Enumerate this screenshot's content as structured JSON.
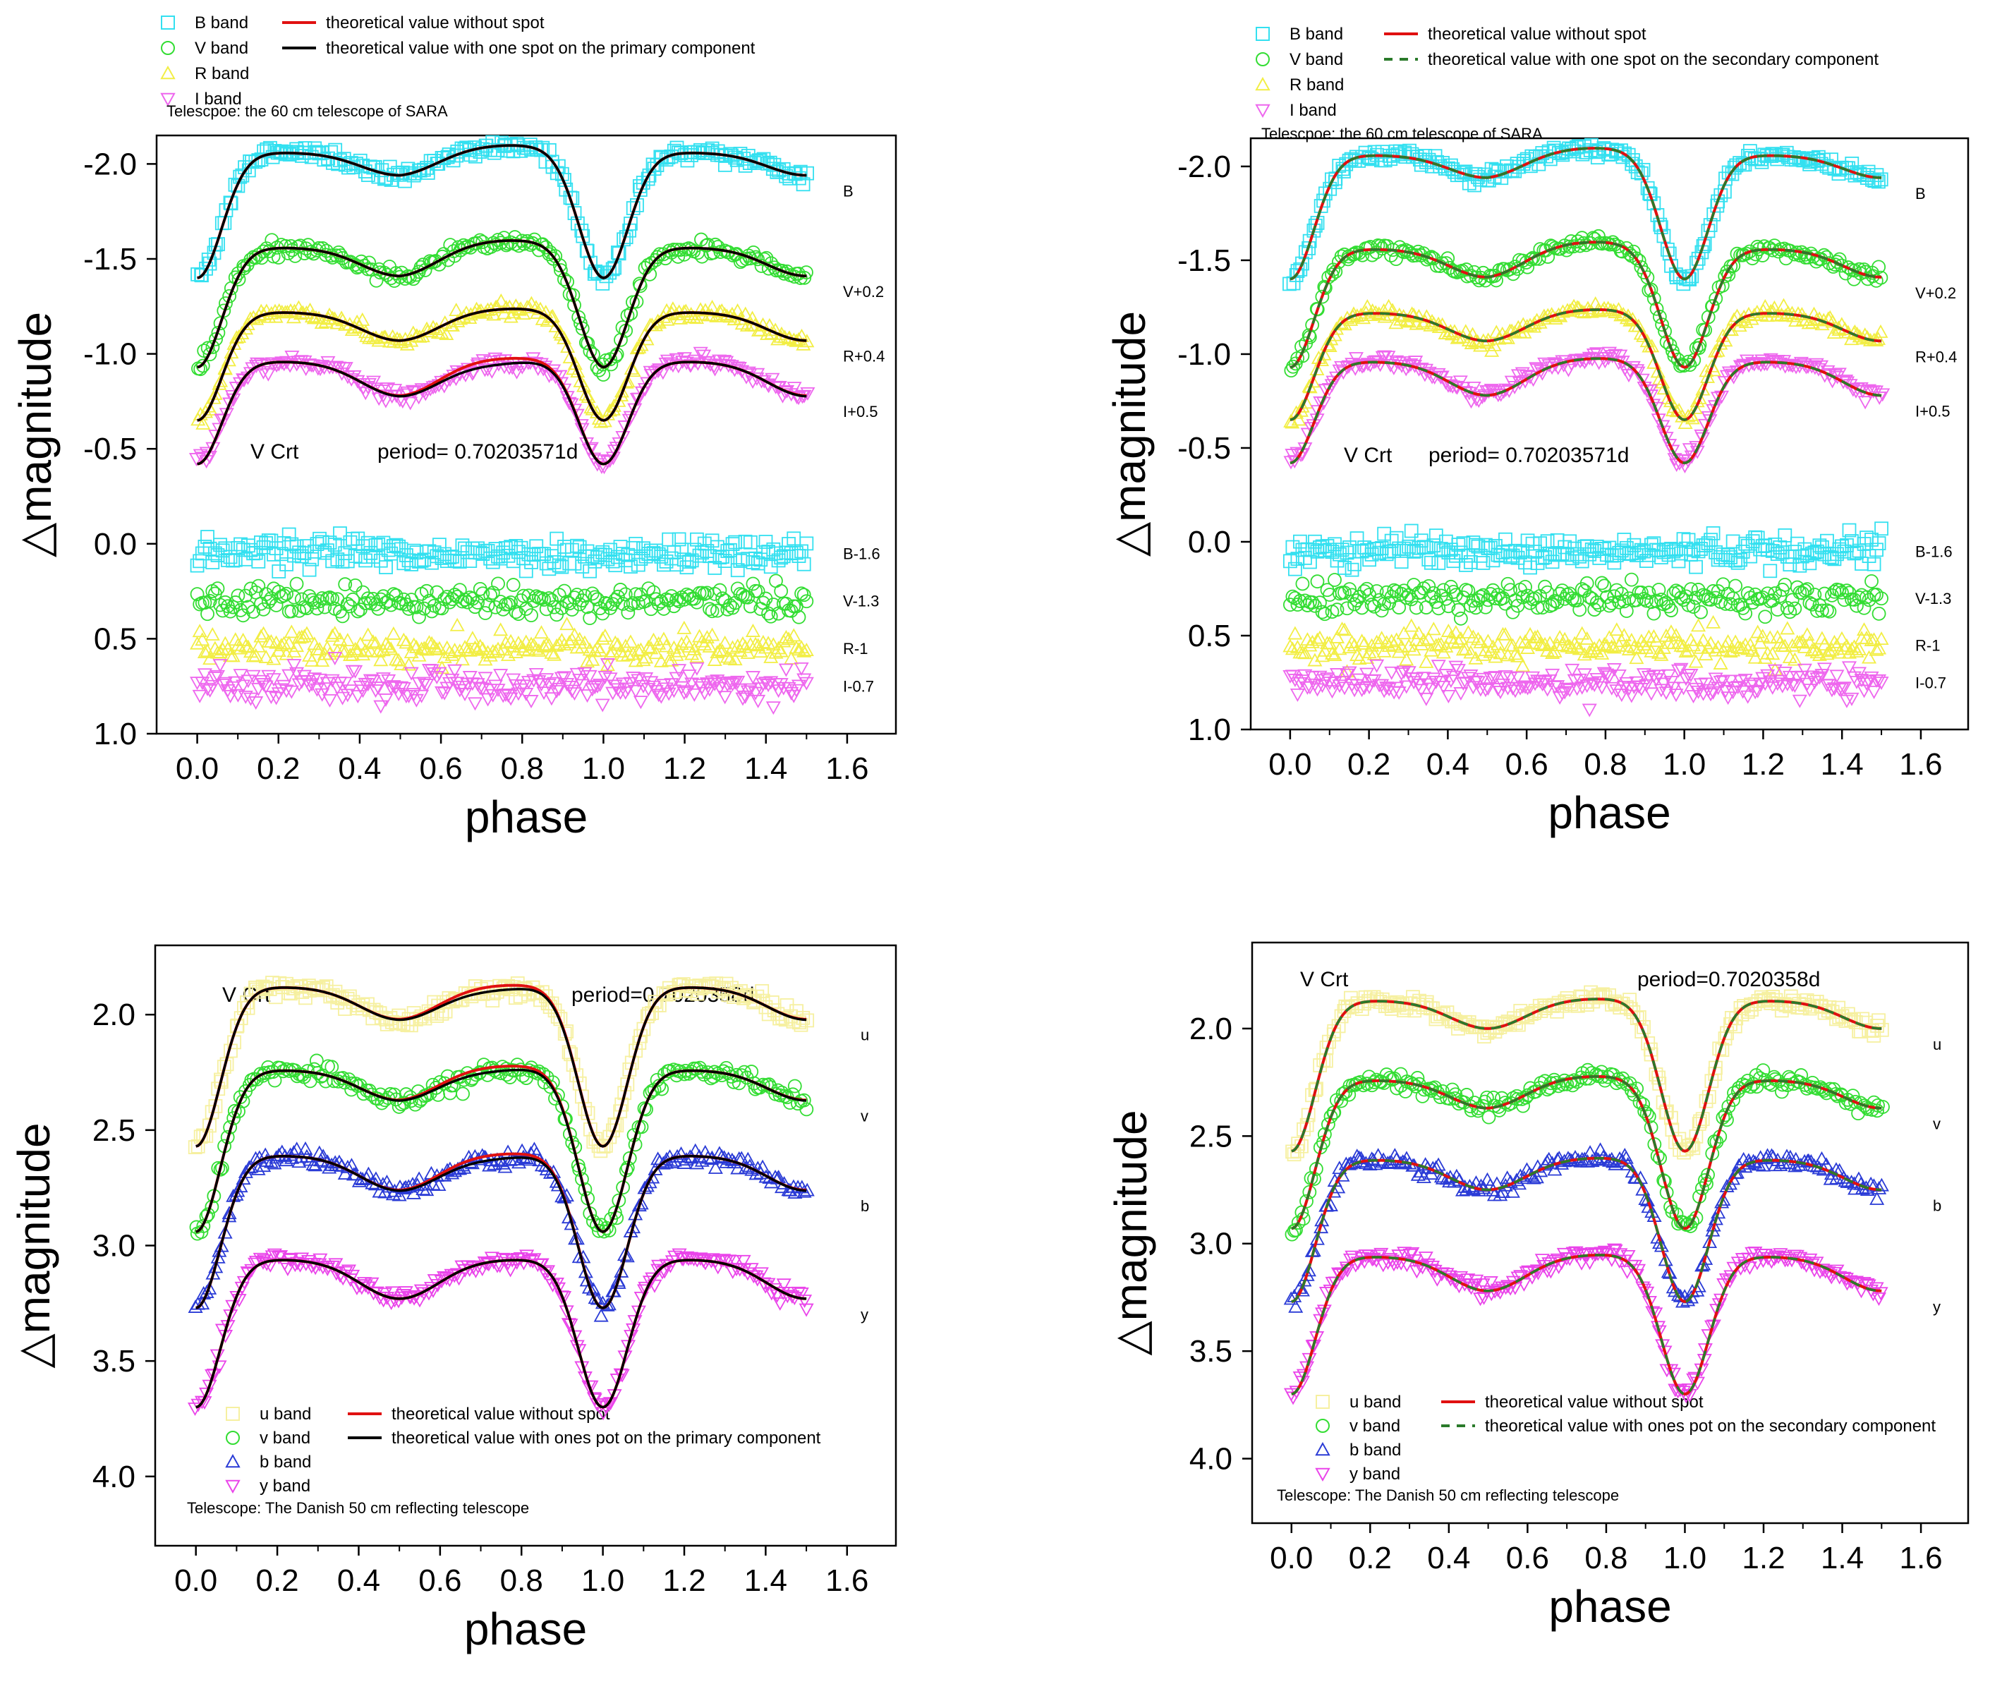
{
  "figure": {
    "background": "#ffffff"
  },
  "colors": {
    "cyan": "#33e0f0",
    "green": "#33dd33",
    "yellow": "#f2ee44",
    "magenta": "#ee66ee",
    "pale_yellow": "#f6f0a0",
    "blue": "#2a3bd6",
    "pink": "#ea44ea",
    "red": "#e01010",
    "black": "#000000",
    "dash_green": "#2a7a2a"
  },
  "chart_data": [
    {
      "id": "top-left",
      "type": "scatter",
      "xlabel": "phase",
      "ylabel": "△magnitude",
      "xlim": [
        -0.1,
        1.72
      ],
      "ylim": [
        1.0,
        -2.15
      ],
      "inverted_y": true,
      "xticks": [
        "0.0",
        "0.2",
        "0.4",
        "0.6",
        "0.8",
        "1.0",
        "1.2",
        "1.4",
        "1.6"
      ],
      "yticks": [
        "-2.0",
        "-1.5",
        "-1.0",
        "-0.5",
        "0.0",
        "0.5",
        "1.0"
      ],
      "ytick_values": [
        -2.0,
        -1.5,
        -1.0,
        -0.5,
        0.0,
        0.5,
        1.0
      ],
      "phase_range": [
        0.0,
        1.5
      ],
      "title_parts": [
        "V Crt",
        "period= 0.70203571d"
      ],
      "legend_markers": [
        {
          "label": "B band",
          "marker": "square",
          "color": "cyan"
        },
        {
          "label": "V band",
          "marker": "circle",
          "color": "green"
        },
        {
          "label": "R band",
          "marker": "triangle-up",
          "color": "yellow"
        },
        {
          "label": "I band",
          "marker": "triangle-down",
          "color": "magenta"
        }
      ],
      "legend_lines": [
        {
          "label": "theoretical value without spot",
          "color": "red",
          "dash": false
        },
        {
          "label": "theoretical value with one spot on the primary  component",
          "color": "black",
          "dash": false
        }
      ],
      "note": "Telescpoe: the 60 cm telescope of SARA",
      "series": [
        {
          "name": "B",
          "label": "B",
          "marker": "square",
          "color": "cyan",
          "max": -2.06,
          "p1": -1.4,
          "p2": -1.94,
          "oc": -2.1,
          "spot": 0.0
        },
        {
          "name": "V+0.2",
          "label": "V+0.2",
          "marker": "circle",
          "color": "green",
          "max": -1.56,
          "p1": -0.93,
          "p2": -1.41,
          "oc": -1.6,
          "spot": 0.0
        },
        {
          "name": "R+0.4",
          "label": "R+0.4",
          "marker": "triangle-up",
          "color": "yellow",
          "max": -1.22,
          "p1": -0.65,
          "p2": -1.07,
          "oc": -1.24,
          "spot": 0.0
        },
        {
          "name": "I+0.5",
          "label": "I+0.5",
          "marker": "triangle-down",
          "color": "magenta",
          "max": -0.96,
          "p1": -0.42,
          "p2": -0.78,
          "oc": -0.98,
          "spot": 0.03
        }
      ],
      "residuals": [
        {
          "label": "B-1.6",
          "marker": "square",
          "color": "cyan",
          "level": 0.05
        },
        {
          "label": "V-1.3",
          "marker": "circle",
          "color": "green",
          "level": 0.3
        },
        {
          "label": "R-1",
          "marker": "triangle-up",
          "color": "yellow",
          "level": 0.55
        },
        {
          "label": "I-0.7",
          "marker": "triangle-down",
          "color": "magenta",
          "level": 0.75
        }
      ],
      "second_line": {
        "color": "black",
        "dash": false
      }
    },
    {
      "id": "top-right",
      "type": "scatter",
      "xlabel": "phase",
      "ylabel": "△magnitude",
      "xlim": [
        -0.1,
        1.72
      ],
      "ylim": [
        1.0,
        -2.15
      ],
      "inverted_y": true,
      "xticks": [
        "0.0",
        "0.2",
        "0.4",
        "0.6",
        "0.8",
        "1.0",
        "1.2",
        "1.4",
        "1.6"
      ],
      "yticks": [
        "-2.0",
        "-1.5",
        "-1.0",
        "-0.5",
        "0.0",
        "0.5",
        "1.0"
      ],
      "ytick_values": [
        -2.0,
        -1.5,
        -1.0,
        -0.5,
        0.0,
        0.5,
        1.0
      ],
      "phase_range": [
        0.0,
        1.5
      ],
      "title_parts": [
        "V Crt",
        "period= 0.70203571d"
      ],
      "legend_markers": [
        {
          "label": "B band",
          "marker": "square",
          "color": "cyan"
        },
        {
          "label": "V band",
          "marker": "circle",
          "color": "green"
        },
        {
          "label": "R band",
          "marker": "triangle-up",
          "color": "yellow"
        },
        {
          "label": "I band",
          "marker": "triangle-down",
          "color": "magenta"
        }
      ],
      "legend_lines": [
        {
          "label": "theoretical value without spot",
          "color": "red",
          "dash": false
        },
        {
          "label": "theoretical value with one spot on the secondary  component",
          "color": "dash_green",
          "dash": true
        }
      ],
      "note": "Telescpoe: the 60 cm telescope of SARA",
      "series": [
        {
          "name": "B",
          "label": "B",
          "marker": "square",
          "color": "cyan",
          "max": -2.06,
          "p1": -1.4,
          "p2": -1.94,
          "oc": -2.1,
          "spot": 0.0
        },
        {
          "name": "V+0.2",
          "label": "V+0.2",
          "marker": "circle",
          "color": "green",
          "max": -1.56,
          "p1": -0.93,
          "p2": -1.41,
          "oc": -1.6,
          "spot": 0.0
        },
        {
          "name": "R+0.4",
          "label": "R+0.4",
          "marker": "triangle-up",
          "color": "yellow",
          "max": -1.22,
          "p1": -0.65,
          "p2": -1.07,
          "oc": -1.24,
          "spot": 0.0
        },
        {
          "name": "I+0.5",
          "label": "I+0.5",
          "marker": "triangle-down",
          "color": "magenta",
          "max": -0.96,
          "p1": -0.42,
          "p2": -0.78,
          "oc": -0.98,
          "spot": 0.0
        }
      ],
      "residuals": [
        {
          "label": "B-1.6",
          "marker": "square",
          "color": "cyan",
          "level": 0.05
        },
        {
          "label": "V-1.3",
          "marker": "circle",
          "color": "green",
          "level": 0.3
        },
        {
          "label": "R-1",
          "marker": "triangle-up",
          "color": "yellow",
          "level": 0.55
        },
        {
          "label": "I-0.7",
          "marker": "triangle-down",
          "color": "magenta",
          "level": 0.75
        }
      ],
      "second_line": {
        "color": "dash_green",
        "dash": true
      }
    },
    {
      "id": "bottom-left",
      "type": "scatter",
      "xlabel": "phase",
      "ylabel": "△magnitude",
      "xlim": [
        -0.1,
        1.72
      ],
      "ylim": [
        4.3,
        1.7
      ],
      "inverted_y": true,
      "xticks": [
        "0.0",
        "0.2",
        "0.4",
        "0.6",
        "0.8",
        "1.0",
        "1.2",
        "1.4",
        "1.6"
      ],
      "yticks": [
        "2.0",
        "2.5",
        "3.0",
        "3.5",
        "4.0"
      ],
      "ytick_values": [
        2.0,
        2.5,
        3.0,
        3.5,
        4.0
      ],
      "phase_range": [
        0.0,
        1.5
      ],
      "title_parts": [
        "V Crt",
        "period=0.7020358d"
      ],
      "legend_markers": [
        {
          "label": "u band",
          "marker": "square",
          "color": "pale_yellow"
        },
        {
          "label": "v band",
          "marker": "circle",
          "color": "green"
        },
        {
          "label": "b band",
          "marker": "triangle-up",
          "color": "blue"
        },
        {
          "label": "y band",
          "marker": "triangle-down",
          "color": "pink"
        }
      ],
      "legend_lines": [
        {
          "label": "theoretical value without spot",
          "color": "red",
          "dash": false
        },
        {
          "label": "theoretical value with ones pot on the primary  component",
          "color": "black",
          "dash": false
        }
      ],
      "note": "Telescope: The Danish 50 cm reflecting telescope",
      "series": [
        {
          "name": "u",
          "label": "u",
          "marker": "square",
          "color": "pale_yellow",
          "max": 1.88,
          "p1": 2.57,
          "p2": 2.02,
          "oc": 1.87,
          "spot": 0.02
        },
        {
          "name": "v",
          "label": "v",
          "marker": "circle",
          "color": "green",
          "max": 2.24,
          "p1": 2.94,
          "p2": 2.37,
          "oc": 2.22,
          "spot": 0.02
        },
        {
          "name": "b",
          "label": "b",
          "marker": "triangle-up",
          "color": "blue",
          "max": 2.61,
          "p1": 3.27,
          "p2": 2.76,
          "oc": 2.6,
          "spot": 0.02
        },
        {
          "name": "y",
          "label": "y",
          "marker": "triangle-down",
          "color": "pink",
          "max": 3.06,
          "p1": 3.7,
          "p2": 3.23,
          "oc": 3.06,
          "spot": 0.0
        }
      ],
      "residuals": [],
      "second_line": {
        "color": "black",
        "dash": false
      }
    },
    {
      "id": "bottom-right",
      "type": "scatter",
      "xlabel": "phase",
      "ylabel": "△magnitude",
      "xlim": [
        -0.1,
        1.72
      ],
      "ylim": [
        4.3,
        1.6
      ],
      "inverted_y": true,
      "xticks": [
        "0.0",
        "0.2",
        "0.4",
        "0.6",
        "0.8",
        "1.0",
        "1.2",
        "1.4",
        "1.6"
      ],
      "yticks": [
        "2.0",
        "2.5",
        "3.0",
        "3.5",
        "4.0"
      ],
      "ytick_values": [
        2.0,
        2.5,
        3.0,
        3.5,
        4.0
      ],
      "phase_range": [
        0.0,
        1.5
      ],
      "title_parts": [
        "V Crt",
        "period=0.7020358d"
      ],
      "legend_markers": [
        {
          "label": "u band",
          "marker": "square",
          "color": "pale_yellow"
        },
        {
          "label": "v band",
          "marker": "circle",
          "color": "green"
        },
        {
          "label": "b band",
          "marker": "triangle-up",
          "color": "blue"
        },
        {
          "label": "y band",
          "marker": "triangle-down",
          "color": "pink"
        }
      ],
      "legend_lines": [
        {
          "label": "theoretical value without spot",
          "color": "red",
          "dash": false
        },
        {
          "label": "theoretical value with ones pot on the secondary component",
          "color": "dash_green",
          "dash": true
        }
      ],
      "note": "Telescope: The Danish 50 cm reflecting telescope",
      "series": [
        {
          "name": "u",
          "label": "u",
          "marker": "square",
          "color": "pale_yellow",
          "max": 1.87,
          "p1": 2.57,
          "p2": 2.0,
          "oc": 1.86,
          "spot": 0.0
        },
        {
          "name": "v",
          "label": "v",
          "marker": "circle",
          "color": "green",
          "max": 2.24,
          "p1": 2.93,
          "p2": 2.37,
          "oc": 2.22,
          "spot": 0.0
        },
        {
          "name": "b",
          "label": "b",
          "marker": "triangle-up",
          "color": "blue",
          "max": 2.61,
          "p1": 3.27,
          "p2": 2.75,
          "oc": 2.6,
          "spot": 0.0
        },
        {
          "name": "y",
          "label": "y",
          "marker": "triangle-down",
          "color": "pink",
          "max": 3.06,
          "p1": 3.7,
          "p2": 3.22,
          "oc": 3.05,
          "spot": 0.0
        }
      ],
      "residuals": [],
      "second_line": {
        "color": "dash_green",
        "dash": true
      }
    }
  ]
}
